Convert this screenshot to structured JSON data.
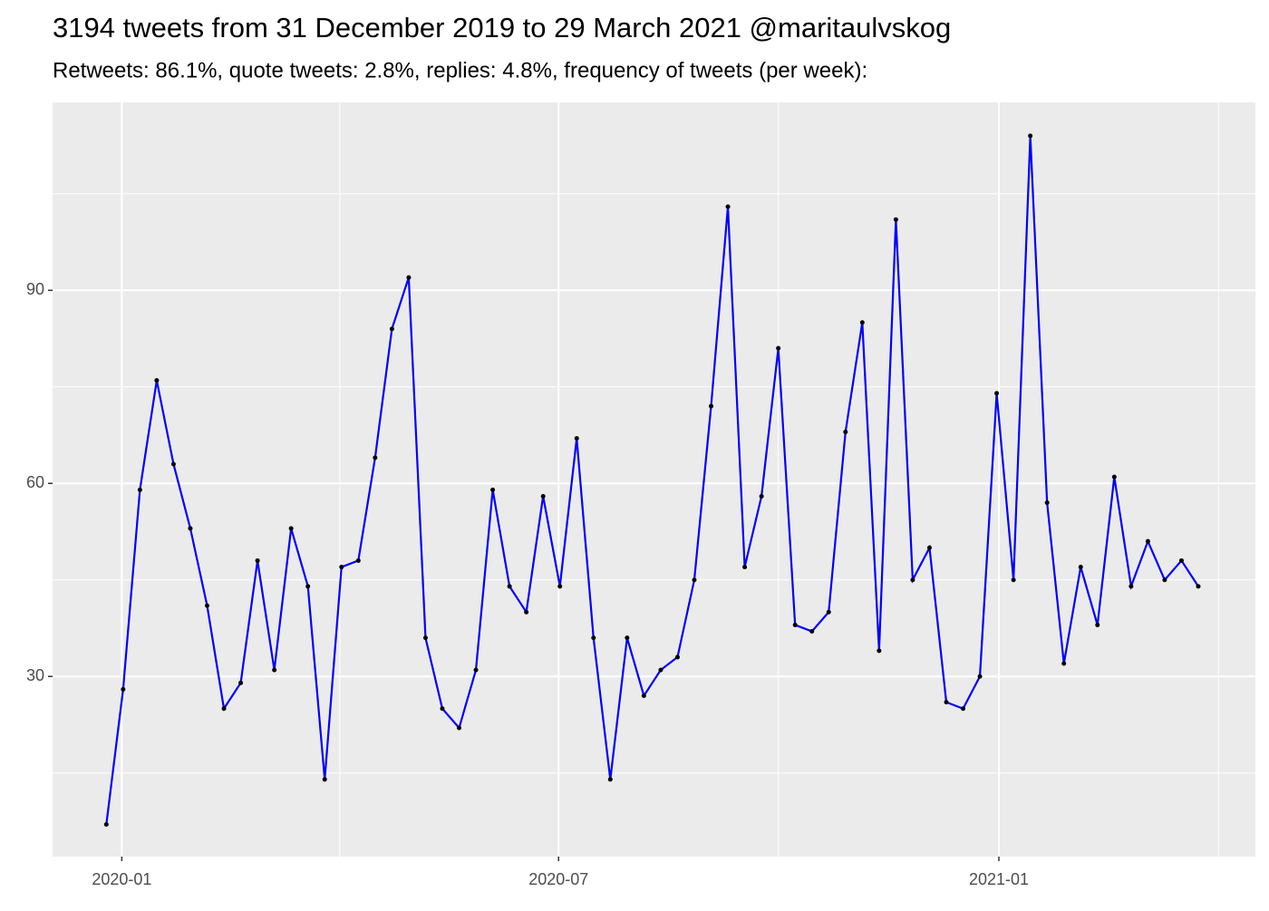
{
  "chart_data": {
    "type": "line",
    "title": "3194 tweets from 31 December 2019 to 29 March 2021 @maritaulvskog",
    "subtitle": "Retweets: 86.1%, quote tweets: 2.8%, replies: 4.8%, frequency of tweets (per week):",
    "x": [
      0,
      1,
      2,
      3,
      4,
      5,
      6,
      7,
      8,
      9,
      10,
      11,
      12,
      13,
      14,
      15,
      16,
      17,
      18,
      19,
      20,
      21,
      22,
      23,
      24,
      25,
      26,
      27,
      28,
      29,
      30,
      31,
      32,
      33,
      34,
      35,
      36,
      37,
      38,
      39,
      40,
      41,
      42,
      43,
      44,
      45,
      46,
      47,
      48,
      49,
      50,
      51,
      52,
      53,
      54,
      55,
      56,
      57,
      58,
      59,
      60,
      61,
      62,
      63,
      64,
      65
    ],
    "series": [
      {
        "color": "#0000ff",
        "point_color": "#000000",
        "values": [
          7,
          28,
          59,
          76,
          63,
          53,
          41,
          25,
          29,
          48,
          31,
          53,
          44,
          14,
          47,
          48,
          64,
          84,
          92,
          36,
          25,
          22,
          31,
          59,
          44,
          40,
          58,
          44,
          67,
          36,
          14,
          36,
          27,
          31,
          33,
          45,
          72,
          103,
          47,
          58,
          81,
          38,
          37,
          40,
          68,
          85,
          34,
          101,
          45,
          50,
          26,
          25,
          30,
          74,
          45,
          114,
          57,
          32,
          47,
          38,
          61,
          44,
          51,
          45,
          48,
          44
        ]
      }
    ],
    "xlim": [
      -3.2,
      68.4
    ],
    "xticks": [
      {
        "value": 0.92,
        "label": "2020-01"
      },
      {
        "value": 26.92,
        "label": "2020-07"
      },
      {
        "value": 53.13,
        "label": "2021-01"
      }
    ],
    "x_minor_grid": [
      13.9,
      40.0,
      66.2
    ],
    "ylim": [
      2,
      119.2
    ],
    "yticks": [
      30,
      60,
      90
    ],
    "y_minor_grid": [
      15,
      45,
      75,
      105
    ],
    "grid": true
  }
}
